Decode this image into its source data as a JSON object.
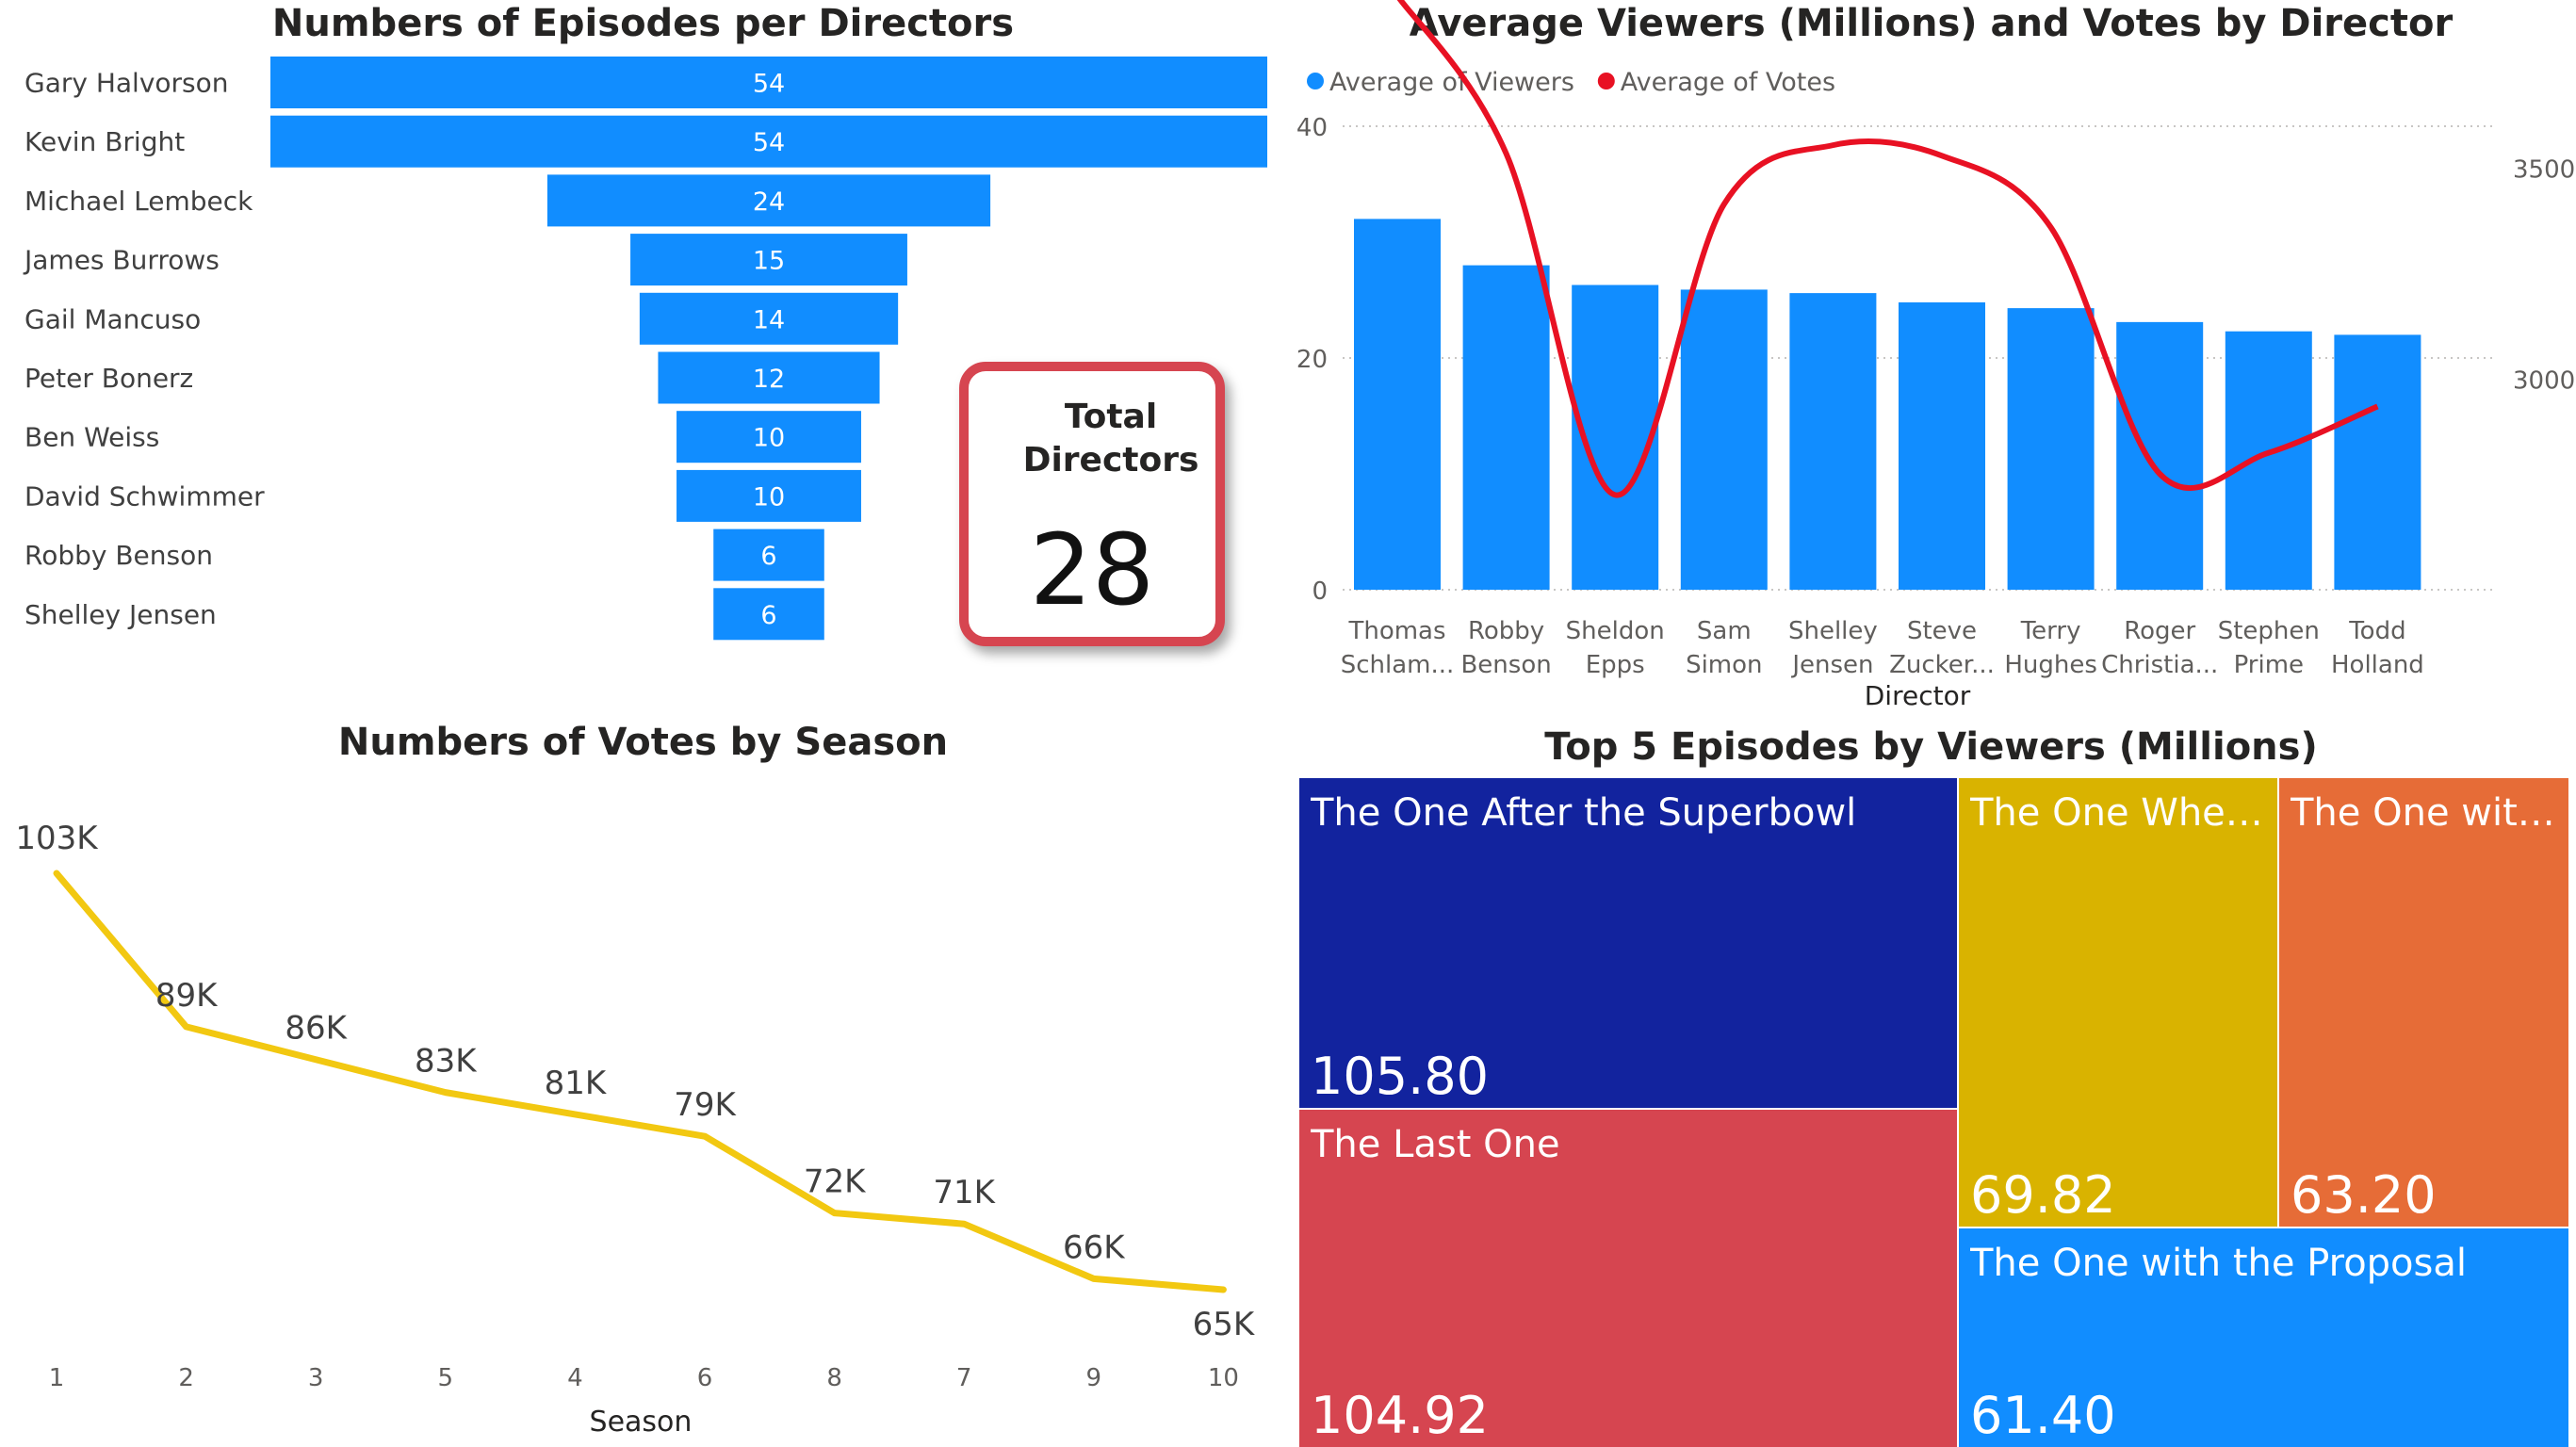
{
  "funnel": {
    "title": "Numbers of Episodes per Directors",
    "color": "#118dff",
    "chart_data": {
      "type": "bar",
      "title": "Numbers of Episodes per Directors",
      "categories": [
        "Gary Halvorson",
        "Kevin Bright",
        "Michael Lembeck",
        "James Burrows",
        "Gail Mancuso",
        "Peter Bonerz",
        "Ben Weiss",
        "David Schwimmer",
        "Robby Benson",
        "Shelley Jensen"
      ],
      "values": [
        54,
        54,
        24,
        15,
        14,
        12,
        10,
        10,
        6,
        6
      ]
    }
  },
  "kpi": {
    "label": "Total Directors",
    "value": "28",
    "border_color": "#d64550"
  },
  "combo": {
    "title": "Average Viewers (Millions) and Votes by Director",
    "legend": [
      {
        "name": "Average of Viewers",
        "color": "#118dff"
      },
      {
        "name": "Average of Votes",
        "color": "#e81123"
      }
    ],
    "chart_data": {
      "type": "bar",
      "title": "Average Viewers (Millions) and Votes by Director",
      "xlabel": "Director",
      "categories": [
        "Thomas Schlam...",
        "Robby Benson",
        "Sheldon Epps",
        "Sam Simon",
        "Shelley Jensen",
        "Steve Zucker...",
        "Terry Hughes",
        "Roger Christia...",
        "Stephen Prime",
        "Todd Holland"
      ],
      "category_lines": [
        [
          "Thomas",
          "Schlam..."
        ],
        [
          "Robby",
          "Benson"
        ],
        [
          "Sheldon",
          "Epps"
        ],
        [
          "Sam",
          "Simon"
        ],
        [
          "Shelley",
          "Jensen"
        ],
        [
          "Steve",
          "Zucker..."
        ],
        [
          "Terry",
          "Hughes"
        ],
        [
          "Roger",
          "Christia..."
        ],
        [
          "Stephen",
          "Prime"
        ],
        [
          "Todd",
          "Holland"
        ]
      ],
      "series": [
        {
          "name": "Average of Viewers",
          "type": "bar",
          "axis": "left",
          "color": "#118dff",
          "values": [
            32,
            28,
            26.3,
            25.9,
            25.6,
            24.8,
            24.3,
            23.1,
            22.3,
            22
          ]
        },
        {
          "name": "Average of Votes",
          "type": "line",
          "axis": "right",
          "color": "#e81123",
          "values": [
            3910,
            3535,
            2725,
            3415,
            3555,
            3530,
            3360,
            2775,
            2825,
            2935
          ]
        }
      ],
      "ylim_left": [
        0,
        40
      ],
      "yticks_left": [
        0,
        20,
        40
      ],
      "ylim_right": [
        2500,
        3600
      ],
      "yticks_right": [
        3000,
        3500
      ],
      "legend": "top-left",
      "grid": true
    }
  },
  "line": {
    "title": "Numbers of Votes by Season",
    "color": "#f2c811",
    "chart_data": {
      "type": "line",
      "title": "Numbers of Votes by Season",
      "xlabel": "Season",
      "categories": [
        "1",
        "2",
        "3",
        "5",
        "4",
        "6",
        "8",
        "7",
        "9",
        "10"
      ],
      "values": [
        103,
        89,
        86,
        83,
        81,
        79,
        72,
        71,
        66,
        65
      ],
      "labels": [
        "103K",
        "89K",
        "86K",
        "83K",
        "81K",
        "79K",
        "72K",
        "71K",
        "66K",
        "65K"
      ]
    }
  },
  "treemap": {
    "title": "Top 5 Episodes by Viewers (Millions)",
    "chart_data": {
      "type": "treemap",
      "title": "Top 5 Episodes by Viewers (Millions)",
      "items": [
        {
          "name": "The One After the Superbowl",
          "value": "105.80",
          "color": "#12239e"
        },
        {
          "name": "The Last One",
          "value": "104.92",
          "color": "#d64550"
        },
        {
          "name": "The One Wher...",
          "value": "69.82",
          "color": "#d9b300"
        },
        {
          "name": "The One with...",
          "value": "63.20",
          "color": "#e66c37"
        },
        {
          "name": "The One with the Proposal",
          "value": "61.40",
          "color": "#118dff"
        }
      ]
    }
  }
}
